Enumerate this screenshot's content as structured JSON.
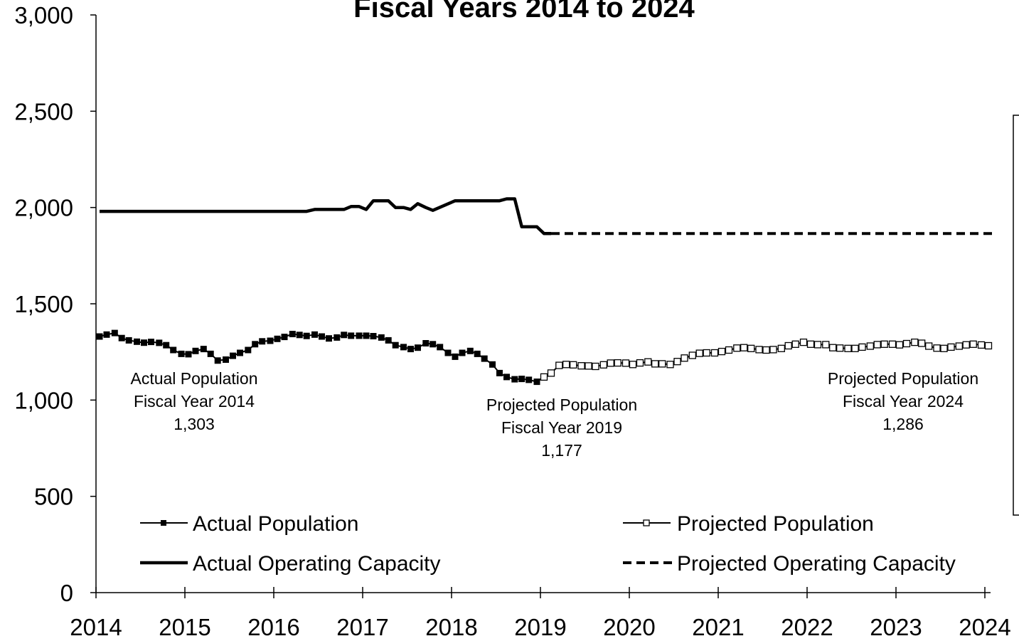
{
  "chart_data": {
    "type": "line",
    "title": "Fiscal Years 2014 to 2024",
    "xlabel": "",
    "ylabel": "",
    "xlim": [
      2014,
      2024
    ],
    "ylim": [
      0,
      3000
    ],
    "x_ticks": [
      "2014",
      "2015",
      "2016",
      "2017",
      "2018",
      "2019",
      "2020",
      "2021",
      "2022",
      "2023",
      "2024"
    ],
    "y_ticks": [
      "0",
      "500",
      "1,000",
      "1,500",
      "2,000",
      "2,500",
      "3,000"
    ],
    "grid": false,
    "legend_position": "bottom",
    "series": [
      {
        "name": "Actual Population",
        "style": "solid-filled-square",
        "x": [
          2014.04,
          2014.12,
          2014.21,
          2014.29,
          2014.37,
          2014.46,
          2014.54,
          2014.62,
          2014.71,
          2014.79,
          2014.87,
          2014.96,
          2015.04,
          2015.12,
          2015.21,
          2015.29,
          2015.37,
          2015.46,
          2015.54,
          2015.62,
          2015.71,
          2015.79,
          2015.87,
          2015.96,
          2016.04,
          2016.12,
          2016.21,
          2016.29,
          2016.37,
          2016.46,
          2016.54,
          2016.62,
          2016.71,
          2016.79,
          2016.87,
          2016.96,
          2017.04,
          2017.12,
          2017.21,
          2017.29,
          2017.37,
          2017.46,
          2017.54,
          2017.62,
          2017.71,
          2017.79,
          2017.87,
          2017.96,
          2018.04,
          2018.12,
          2018.21,
          2018.29,
          2018.37,
          2018.46,
          2018.54,
          2018.62,
          2018.71,
          2018.79,
          2018.87,
          2018.96,
          2019.04
        ],
        "values": [
          1330,
          1340,
          1348,
          1322,
          1310,
          1303,
          1298,
          1302,
          1297,
          1285,
          1260,
          1240,
          1238,
          1255,
          1265,
          1240,
          1205,
          1210,
          1230,
          1245,
          1260,
          1290,
          1305,
          1308,
          1318,
          1328,
          1343,
          1338,
          1333,
          1340,
          1330,
          1320,
          1325,
          1338,
          1334,
          1334,
          1334,
          1332,
          1325,
          1310,
          1285,
          1275,
          1265,
          1272,
          1295,
          1290,
          1275,
          1245,
          1225,
          1245,
          1255,
          1240,
          1215,
          1185,
          1140,
          1120,
          1108,
          1110,
          1105,
          1095,
          1120
        ]
      },
      {
        "name": "Projected Population",
        "style": "solid-open-square",
        "x": [
          2019.04,
          2019.12,
          2019.21,
          2019.29,
          2019.37,
          2019.46,
          2019.54,
          2019.62,
          2019.71,
          2019.79,
          2019.87,
          2019.96,
          2020.04,
          2020.12,
          2020.21,
          2020.29,
          2020.37,
          2020.46,
          2020.54,
          2020.62,
          2020.71,
          2020.79,
          2020.87,
          2020.96,
          2021.04,
          2021.12,
          2021.21,
          2021.29,
          2021.37,
          2021.46,
          2021.54,
          2021.62,
          2021.71,
          2021.79,
          2021.87,
          2021.96,
          2022.04,
          2022.12,
          2022.21,
          2022.29,
          2022.37,
          2022.46,
          2022.54,
          2022.62,
          2022.71,
          2022.79,
          2022.87,
          2022.96,
          2023.04,
          2023.12,
          2023.21,
          2023.29,
          2023.37,
          2023.46,
          2023.54,
          2023.62,
          2023.71,
          2023.79,
          2023.87,
          2023.96,
          2024.04
        ],
        "values": [
          1120,
          1140,
          1180,
          1185,
          1183,
          1178,
          1177,
          1175,
          1183,
          1192,
          1193,
          1192,
          1185,
          1193,
          1198,
          1188,
          1188,
          1185,
          1200,
          1218,
          1232,
          1243,
          1245,
          1245,
          1252,
          1260,
          1270,
          1272,
          1268,
          1262,
          1260,
          1262,
          1268,
          1282,
          1290,
          1300,
          1290,
          1288,
          1288,
          1272,
          1270,
          1268,
          1268,
          1275,
          1280,
          1288,
          1290,
          1290,
          1287,
          1293,
          1300,
          1295,
          1280,
          1270,
          1268,
          1275,
          1280,
          1287,
          1290,
          1286,
          1282
        ]
      },
      {
        "name": "Actual Operating Capacity",
        "style": "thick-solid",
        "x": [
          2014.04,
          2016.37,
          2016.46,
          2016.79,
          2016.87,
          2016.96,
          2017.04,
          2017.12,
          2017.21,
          2017.29,
          2017.37,
          2017.46,
          2017.54,
          2017.62,
          2017.71,
          2017.79,
          2018.04,
          2018.54,
          2018.62,
          2018.71,
          2018.79,
          2018.96,
          2019.04,
          2019.12
        ],
        "values": [
          1980,
          1980,
          1990,
          1990,
          2005,
          2005,
          1990,
          2035,
          2035,
          2035,
          2000,
          2000,
          1990,
          2020,
          2000,
          1985,
          2035,
          2035,
          2045,
          2045,
          1900,
          1900,
          1865,
          1865
        ]
      },
      {
        "name": "Projected Operating Capacity",
        "style": "dashed",
        "x": [
          2019.12,
          2024.1
        ],
        "values": [
          1865,
          1865
        ]
      }
    ],
    "annotations": [
      {
        "id": "a2014",
        "lines": [
          "Actual Population",
          "Fiscal Year 2014",
          "1,303"
        ]
      },
      {
        "id": "p2019",
        "lines": [
          "Projected Population",
          "Fiscal Year 2019",
          "1,177"
        ]
      },
      {
        "id": "p2024",
        "lines": [
          "Projected Population",
          "Fiscal Year 2024",
          "1,286"
        ]
      }
    ]
  }
}
